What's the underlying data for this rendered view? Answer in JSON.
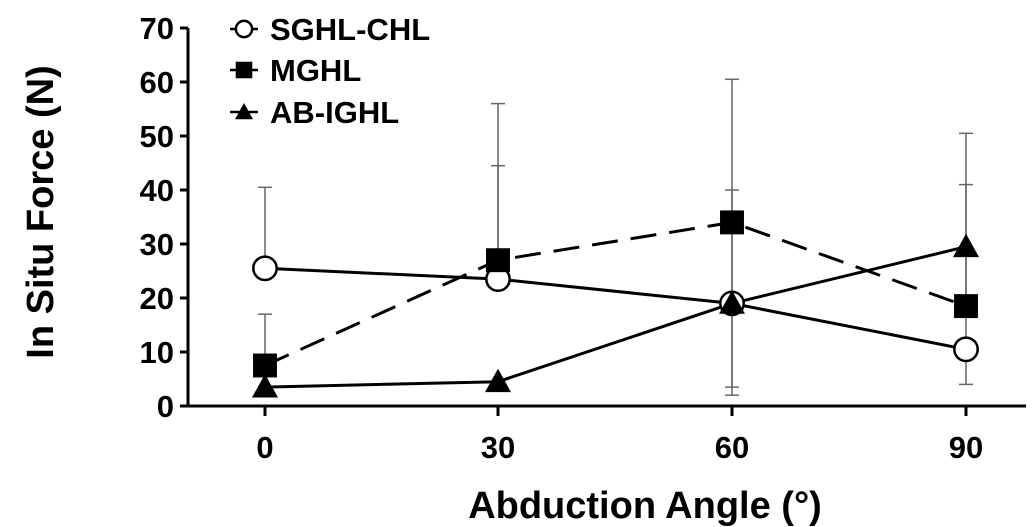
{
  "chart_data": {
    "type": "line",
    "title": "",
    "xlabel": "Abduction Angle (°)",
    "ylabel": "In Situ Force (N)",
    "x": [
      0,
      30,
      60,
      90
    ],
    "x_tick_labels": [
      "0",
      "30",
      "60",
      "90"
    ],
    "ylim": [
      0,
      70
    ],
    "y_ticks": [
      0,
      10,
      20,
      30,
      40,
      50,
      60,
      70
    ],
    "y_tick_labels": [
      "0",
      "10",
      "20",
      "30",
      "40",
      "50",
      "60",
      "70"
    ],
    "grid": false,
    "legend_position": "top-left",
    "series": [
      {
        "name": "SGHL-CHL",
        "marker": "open-circle",
        "line_style": "solid",
        "values": [
          25.5,
          23.5,
          19,
          10.5
        ],
        "error_high": [
          40.5,
          44.5,
          40,
          41
        ],
        "error_low": [
          null,
          null,
          null,
          4
        ]
      },
      {
        "name": "MGHL",
        "marker": "filled-square",
        "line_style": "dashed",
        "values": [
          7.5,
          27,
          34,
          18.5
        ],
        "error_high": [
          17,
          56,
          60.5,
          50.5
        ],
        "error_low": [
          null,
          null,
          3.5,
          null
        ]
      },
      {
        "name": "AB-IGHL",
        "marker": "filled-triangle",
        "line_style": "solid",
        "values": [
          3.5,
          4.5,
          19,
          29.5
        ],
        "error_high": [
          null,
          null,
          null,
          null
        ],
        "error_low": [
          null,
          null,
          2,
          null
        ]
      }
    ]
  }
}
